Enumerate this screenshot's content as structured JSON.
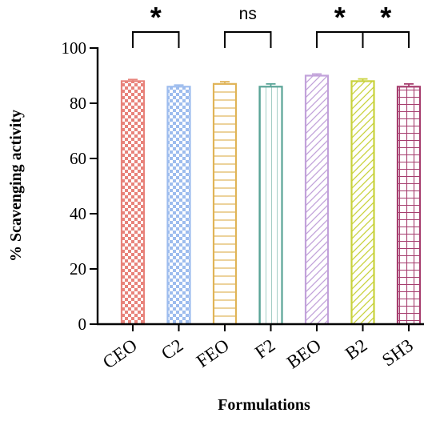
{
  "chart_data": {
    "type": "bar",
    "categories": [
      "CEO",
      "C2",
      "FEO",
      "F2",
      "BEO",
      "B2",
      "SH3"
    ],
    "values": [
      88.0,
      86.0,
      87.0,
      86.0,
      90.0,
      88.0,
      86.0
    ],
    "errors": [
      0.6,
      0.6,
      0.8,
      1.0,
      0.6,
      0.8,
      1.0
    ],
    "colors": [
      "#e8837b",
      "#9dbcee",
      "#e0b458",
      "#5aa497",
      "#c2a2da",
      "#c9d23c",
      "#a63d6e"
    ],
    "patterns": [
      "checker",
      "checker",
      "horizontal",
      "vertical",
      "diagonal",
      "diagonal",
      "grid"
    ],
    "xlabel": "Formulations",
    "ylabel": "% Scavenging activity",
    "ylim": [
      0,
      100
    ],
    "yticks": [
      0,
      20,
      40,
      60,
      80,
      100
    ],
    "significance": [
      {
        "pair": [
          "CEO",
          "C2"
        ],
        "label": "*"
      },
      {
        "pair": [
          "FEO",
          "F2"
        ],
        "label": "ns"
      },
      {
        "pair": [
          "BEO",
          "B2"
        ],
        "label": "*"
      },
      {
        "pair": [
          "B2",
          "SH3"
        ],
        "label": "*"
      }
    ]
  }
}
